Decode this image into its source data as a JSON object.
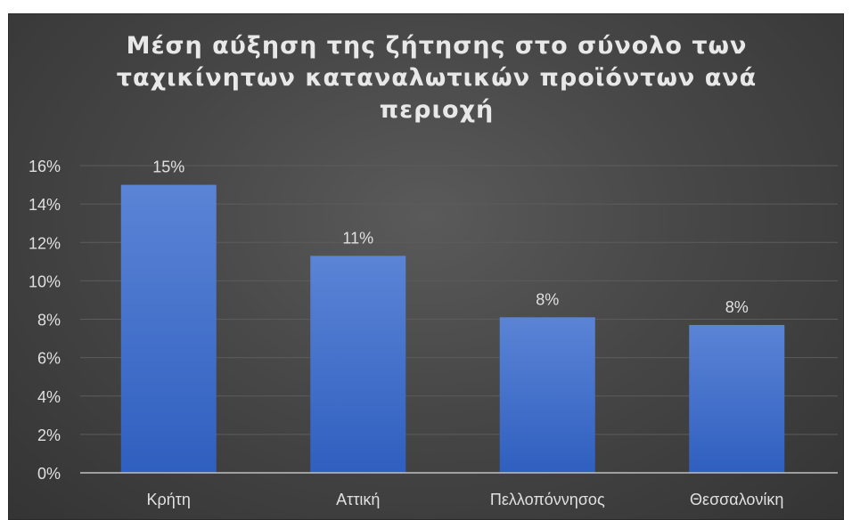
{
  "chart_data": {
    "type": "bar",
    "title": "Μέση αύξηση της ζήτησης στο σύνολο των ταχικίνητων καταναλωτικών προϊόντων ανά περιοχή",
    "categories": [
      "Κρήτη",
      "Αττική",
      "Πελλοπόννησος",
      "Θεσσαλονίκη"
    ],
    "values": [
      15,
      11.3,
      8.1,
      7.7
    ],
    "data_labels": [
      "15%",
      "11%",
      "8%",
      "8%"
    ],
    "ylim": [
      0,
      16
    ],
    "yticks": [
      "0%",
      "2%",
      "4%",
      "6%",
      "8%",
      "10%",
      "12%",
      "14%",
      "16%"
    ],
    "xlabel": "",
    "ylabel": "",
    "grid": true,
    "legend": "none",
    "colors": {
      "bar_top": "#5b84d6",
      "bar_bottom": "#2f5fbf",
      "background": "#454545",
      "text": "#e0e0e0",
      "gridline": "#5c5c5c"
    }
  }
}
